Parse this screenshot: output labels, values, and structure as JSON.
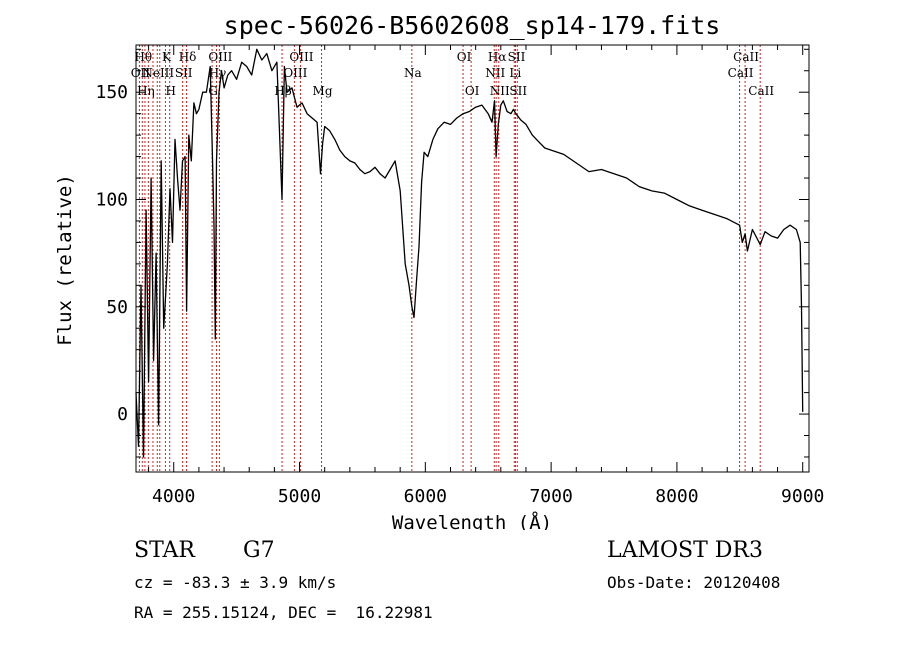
{
  "chart_data": {
    "type": "line",
    "title": "spec-56026-B5602608_sp14-179.fits",
    "xlabel": "Wavelength (Å)",
    "ylabel": "Flux (relative)",
    "xlim": [
      3700,
      9050
    ],
    "ylim": [
      -27,
      172
    ],
    "xticks": [
      4000,
      5000,
      6000,
      7000,
      8000,
      9000
    ],
    "yticks": [
      0,
      50,
      100,
      150
    ],
    "grid": false,
    "series": [
      {
        "color": "#000000",
        "x": [
          3700,
          3720,
          3740,
          3760,
          3780,
          3800,
          3820,
          3840,
          3860,
          3880,
          3900,
          3920,
          3935,
          3950,
          3970,
          3990,
          4010,
          4030,
          4050,
          4070,
          4090,
          4102,
          4120,
          4140,
          4160,
          4180,
          4200,
          4230,
          4260,
          4290,
          4310,
          4320,
          4330,
          4340,
          4360,
          4380,
          4400,
          4430,
          4460,
          4500,
          4540,
          4580,
          4620,
          4660,
          4700,
          4740,
          4780,
          4820,
          4861,
          4880,
          4900,
          4940,
          4980,
          5020,
          5060,
          5100,
          5140,
          5167,
          5183,
          5200,
          5240,
          5280,
          5320,
          5360,
          5400,
          5440,
          5480,
          5520,
          5560,
          5600,
          5640,
          5680,
          5720,
          5760,
          5800,
          5840,
          5870,
          5893,
          5910,
          5930,
          5950,
          5970,
          5990,
          6020,
          6060,
          6100,
          6150,
          6200,
          6250,
          6300,
          6350,
          6400,
          6450,
          6500,
          6530,
          6550,
          6563,
          6580,
          6600,
          6620,
          6650,
          6680,
          6700,
          6720,
          6760,
          6800,
          6850,
          6900,
          6950,
          7000,
          7100,
          7200,
          7300,
          7400,
          7500,
          7600,
          7700,
          7800,
          7900,
          8000,
          8100,
          8200,
          8300,
          8400,
          8498,
          8520,
          8542,
          8560,
          8600,
          8662,
          8700,
          8750,
          8800,
          8850,
          8900,
          8950,
          8980,
          8990,
          9000
        ],
        "y": [
          10,
          -15,
          60,
          -20,
          95,
          15,
          110,
          25,
          75,
          -5,
          118,
          40,
          55,
          70,
          105,
          80,
          128,
          110,
          95,
          118,
          120,
          48,
          130,
          118,
          145,
          140,
          142,
          150,
          150,
          162,
          115,
          88,
          35,
          118,
          150,
          160,
          152,
          158,
          160,
          156,
          164,
          162,
          158,
          170,
          165,
          168,
          160,
          164,
          100,
          162,
          150,
          152,
          143,
          145,
          140,
          138,
          136,
          112,
          126,
          134,
          132,
          128,
          123,
          120,
          118,
          117,
          114,
          112,
          113,
          115,
          112,
          110,
          114,
          118,
          104,
          70,
          60,
          50,
          45,
          62,
          78,
          108,
          122,
          120,
          128,
          133,
          136,
          135,
          138,
          140,
          141,
          143,
          144,
          140,
          136,
          146,
          120,
          135,
          144,
          146,
          141,
          140,
          142,
          140,
          137,
          135,
          130,
          127,
          124,
          123,
          121,
          117,
          113,
          114,
          112,
          110,
          106,
          104,
          103,
          100,
          97,
          95,
          93,
          91,
          88,
          80,
          84,
          76,
          86,
          79,
          85,
          83,
          82,
          86,
          88,
          86,
          80,
          50,
          1
        ]
      }
    ],
    "line_markers": [
      {
        "w": 3727,
        "label": "OII",
        "row": 1
      },
      {
        "w": 3750,
        "label": "Hθ",
        "row": 0
      },
      {
        "w": 3771,
        "label": "Hη",
        "row": 2
      },
      {
        "w": 3798,
        "label": "",
        "row": -1
      },
      {
        "w": 3835,
        "label": "",
        "row": -1
      },
      {
        "w": 3869,
        "label": "NeIII",
        "row": 1
      },
      {
        "w": 3889,
        "label": "",
        "row": -1
      },
      {
        "w": 3934,
        "label": "K",
        "row": 0
      },
      {
        "w": 3968,
        "label": "H",
        "row": 2
      },
      {
        "w": 4071,
        "label": "SII",
        "row": 1
      },
      {
        "w": 4102,
        "label": "Hδ",
        "row": 0
      },
      {
        "w": 4305,
        "label": "G",
        "row": 2
      },
      {
        "w": 4340,
        "label": "Hγ",
        "row": 1
      },
      {
        "w": 4363,
        "label": "OIII",
        "row": 0
      },
      {
        "w": 4861,
        "label": "Hβ",
        "row": 2
      },
      {
        "w": 4959,
        "label": "OIII",
        "row": 1
      },
      {
        "w": 5007,
        "label": "OIII",
        "row": 0
      },
      {
        "w": 5175,
        "label": "Mg",
        "row": 2
      },
      {
        "w": 5893,
        "label": "Na",
        "row": 1
      },
      {
        "w": 6300,
        "label": "OI",
        "row": 0
      },
      {
        "w": 6364,
        "label": "OI",
        "row": 2
      },
      {
        "w": 6548,
        "label": "NII",
        "row": 1
      },
      {
        "w": 6563,
        "label": "Hα",
        "row": 0
      },
      {
        "w": 6584,
        "label": "NII",
        "row": 2
      },
      {
        "w": 6707,
        "label": "Li",
        "row": 1
      },
      {
        "w": 6717,
        "label": "SII",
        "row": 0
      },
      {
        "w": 6731,
        "label": "SII",
        "row": 2
      },
      {
        "w": 8498,
        "label": "CaII",
        "row": 1
      },
      {
        "w": 8542,
        "label": "CaII",
        "row": 0
      },
      {
        "w": 8662,
        "label": "CaII",
        "row": 2
      }
    ]
  },
  "info": {
    "class_label": "STAR",
    "subclass": "G7",
    "redshift": "cz = -83.3 ± 3.9 km/s",
    "coords": "RA = 255.15124, DEC =  16.22981",
    "survey": "LAMOST DR3",
    "obs_date": "Obs-Date: 20120408"
  }
}
